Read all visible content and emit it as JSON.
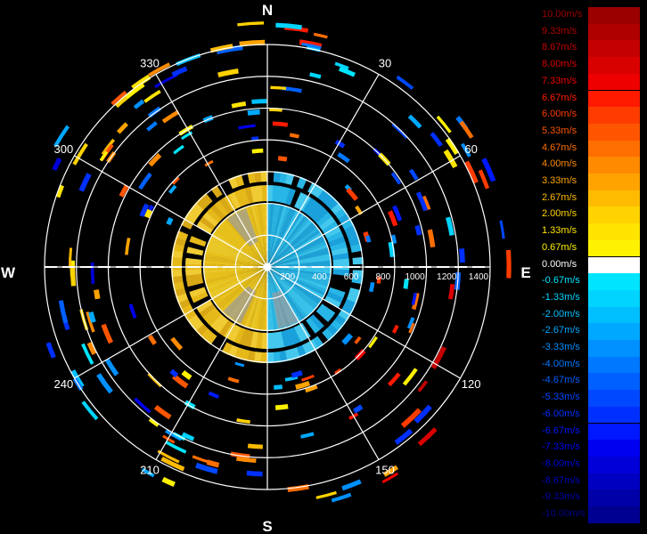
{
  "compass": {
    "n": "N",
    "e": "E",
    "s": "S",
    "w": "W"
  },
  "bearings": [
    "30",
    "60",
    "120",
    "150",
    "210",
    "240",
    "300",
    "330"
  ],
  "range_labels": [
    "200",
    "400",
    "600",
    "800",
    "1000",
    "1200",
    "1400"
  ],
  "legend": [
    {
      "label": "10.00m/s",
      "color": "#9b0000"
    },
    {
      "label": "9.33m/s",
      "color": "#af0000"
    },
    {
      "label": "8.67m/s",
      "color": "#c40000"
    },
    {
      "label": "8.00m/s",
      "color": "#d90000"
    },
    {
      "label": "7.33m/s",
      "color": "#ee0000"
    },
    {
      "label": "6.67m/s",
      "color": "#ff1a00"
    },
    {
      "label": "6.00m/s",
      "color": "#ff3c00"
    },
    {
      "label": "5.33m/s",
      "color": "#ff5500"
    },
    {
      "label": "4.67m/s",
      "color": "#ff6e00"
    },
    {
      "label": "4.00m/s",
      "color": "#ff8a00"
    },
    {
      "label": "3.33m/s",
      "color": "#ffa300"
    },
    {
      "label": "2.67m/s",
      "color": "#ffbb00"
    },
    {
      "label": "2.00m/s",
      "color": "#ffd200"
    },
    {
      "label": "1.33m/s",
      "color": "#ffe400"
    },
    {
      "label": "0.67m/s",
      "color": "#fff200"
    },
    {
      "label": "0.00m/s",
      "color": "#ffffff"
    },
    {
      "label": "-0.67m/s",
      "color": "#00e5ff"
    },
    {
      "label": "-1.33m/s",
      "color": "#00d4ff"
    },
    {
      "label": "-2.00m/s",
      "color": "#00bfff"
    },
    {
      "label": "-2.67m/s",
      "color": "#00a8ff"
    },
    {
      "label": "-3.33m/s",
      "color": "#0090ff"
    },
    {
      "label": "-4.00m/s",
      "color": "#0078ff"
    },
    {
      "label": "-4.67m/s",
      "color": "#0060ff"
    },
    {
      "label": "-5.33m/s",
      "color": "#0048ff"
    },
    {
      "label": "-6.00m/s",
      "color": "#0030ff"
    },
    {
      "label": "-6.67m/s",
      "color": "#0018ff"
    },
    {
      "label": "-7.33m/s",
      "color": "#0000f0"
    },
    {
      "label": "-8.00m/s",
      "color": "#0000d8"
    },
    {
      "label": "-8.67m/s",
      "color": "#0000c0"
    },
    {
      "label": "-9.33m/s",
      "color": "#0000a8"
    },
    {
      "label": "-10.00m/s",
      "color": "#000090"
    }
  ]
}
